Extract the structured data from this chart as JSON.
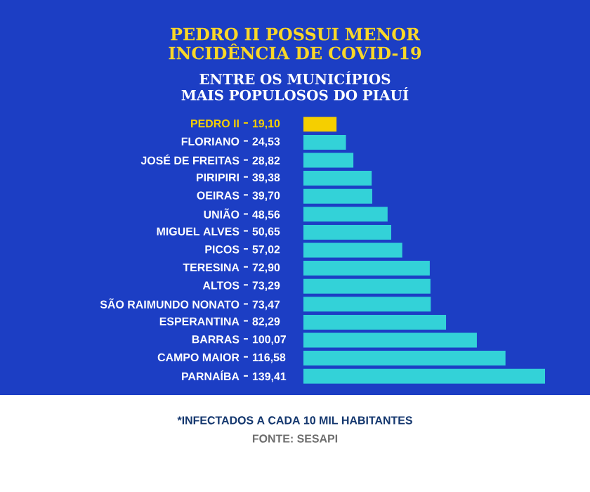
{
  "chart_data": {
    "type": "bar",
    "orientation": "horizontal",
    "title": "PEDRO II POSSUI MENOR INCIDÊNCIA DE COVID-19",
    "subtitle": "ENTRE OS MUNICÍPIOS MAIS POPULOSOS DO PIAUÍ",
    "categories": [
      "PEDRO II",
      "FLORIANO",
      "JOSÉ DE FREITAS",
      "PIRIPIRI",
      "OEIRAS",
      "UNIÃO",
      "MIGUEL ALVES",
      "PICOS",
      "TERESINA",
      "ALTOS",
      "SÃO RAIMUNDO NONATO",
      "ESPERANTINA",
      "BARRAS",
      "CAMPO MAIOR",
      "PARNAÍBA"
    ],
    "values": [
      19.1,
      24.53,
      28.82,
      39.38,
      39.7,
      48.56,
      50.65,
      57.02,
      72.9,
      73.29,
      73.47,
      82.29,
      100.07,
      116.58,
      139.41
    ],
    "value_labels": [
      "19,10",
      "24,53",
      "28,82",
      "39,38",
      "39,70",
      "48,56",
      "50,65",
      "57,02",
      "72,90",
      "73,29",
      "73,47",
      "82,29",
      "100,07",
      "116,58",
      "139,41"
    ],
    "colors": [
      "#f5cf00",
      "#33d2d8",
      "#33d2d8",
      "#33d2d8",
      "#33d2d8",
      "#33d2d8",
      "#33d2d8",
      "#33d2d8",
      "#33d2d8",
      "#33d2d8",
      "#33d2d8",
      "#33d2d8",
      "#33d2d8",
      "#33d2d8",
      "#33d2d8"
    ],
    "annotations": [
      "*INFECTADOS A CADA 10 MIL HABITANTES",
      "FONTE: SESAPI"
    ]
  }
}
